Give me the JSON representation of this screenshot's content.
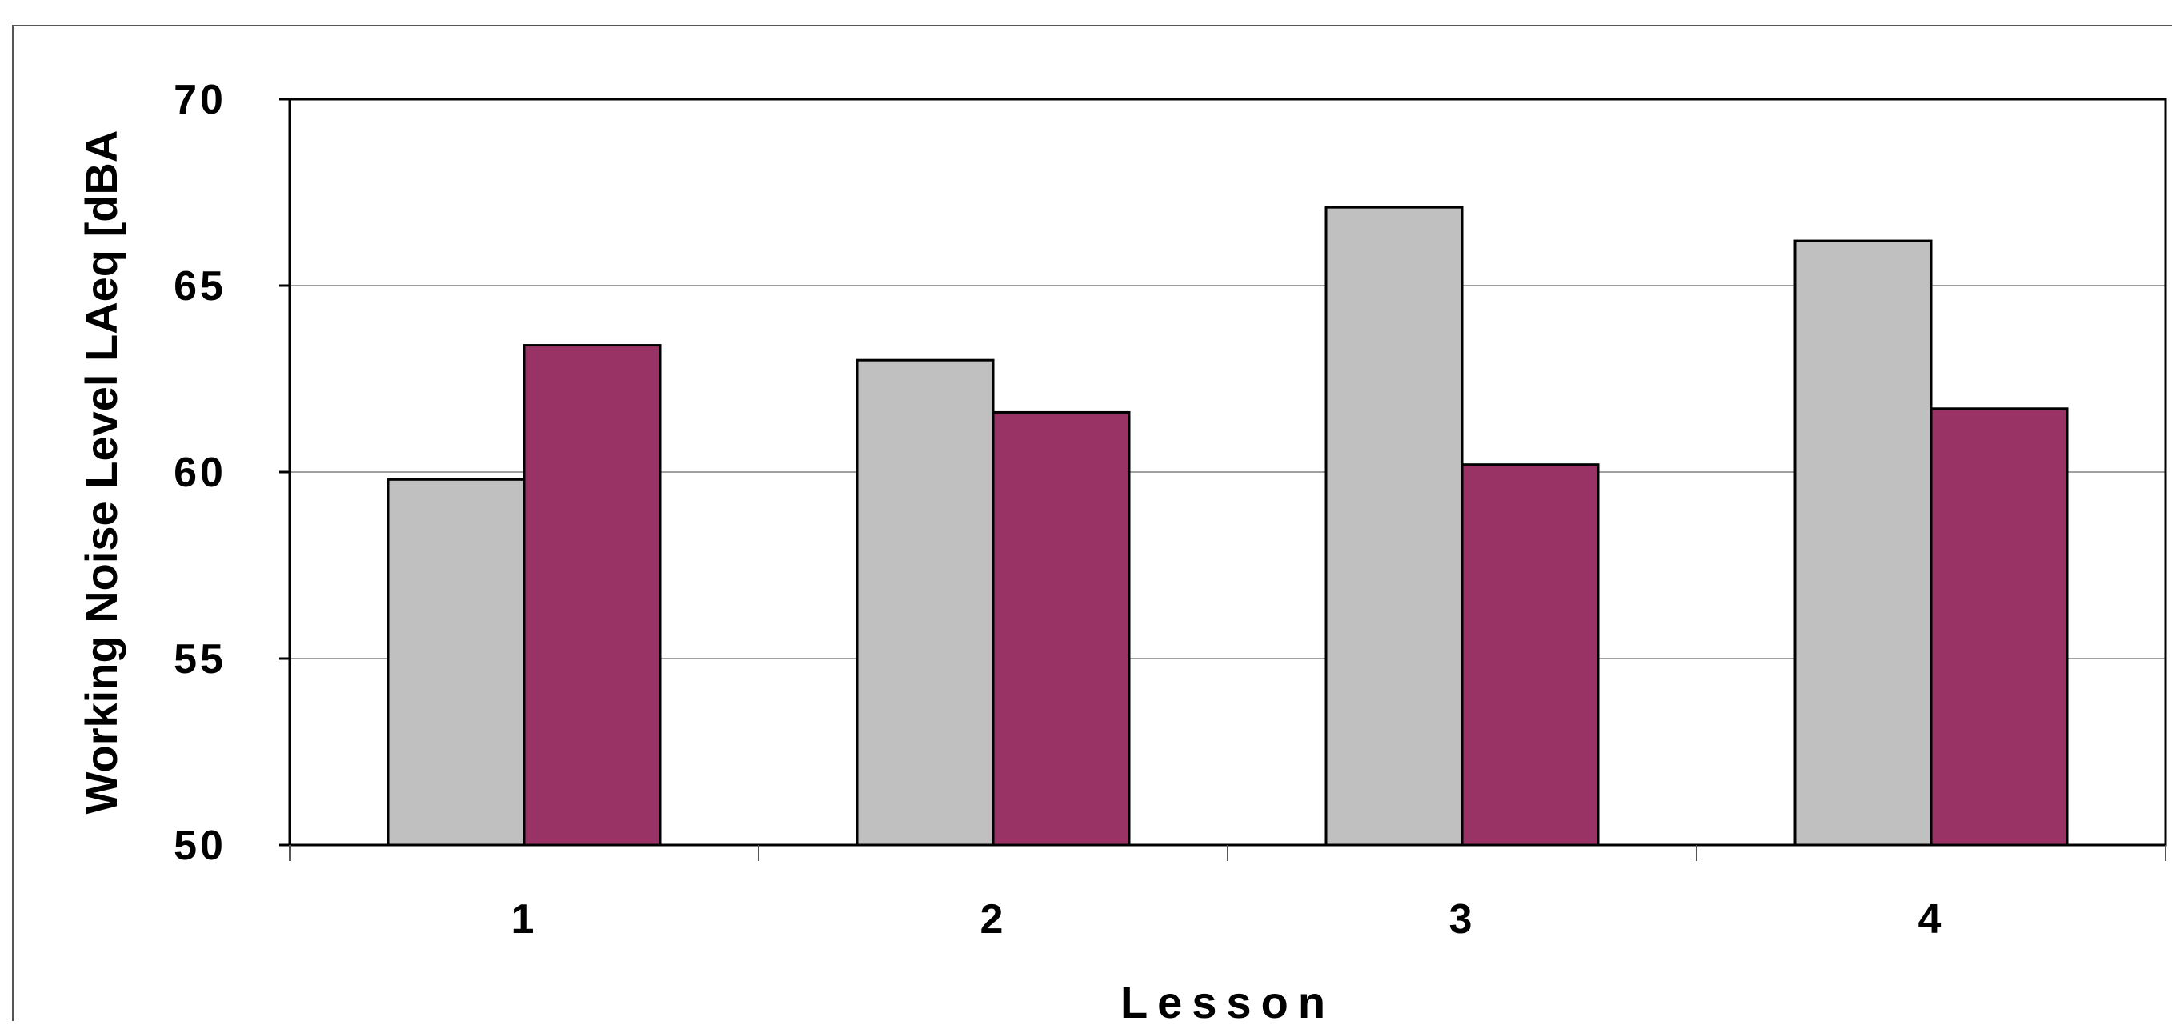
{
  "chart_data": {
    "type": "bar",
    "categories": [
      "1",
      "2",
      "3",
      "4"
    ],
    "series": [
      {
        "values": [
          59.8,
          63.0,
          67.1,
          66.2
        ]
      },
      {
        "values": [
          63.4,
          61.6,
          60.2,
          61.7
        ]
      }
    ],
    "series_colors": [
      "#c0c0c0",
      "#993366"
    ],
    "title": "",
    "xlabel": "Lesson",
    "ylabel": "Working Noise Level LAeq [dBA",
    "ylim": [
      50,
      70
    ],
    "yticks": [
      50,
      55,
      60,
      65,
      70
    ],
    "grid": true,
    "legend": "none"
  }
}
